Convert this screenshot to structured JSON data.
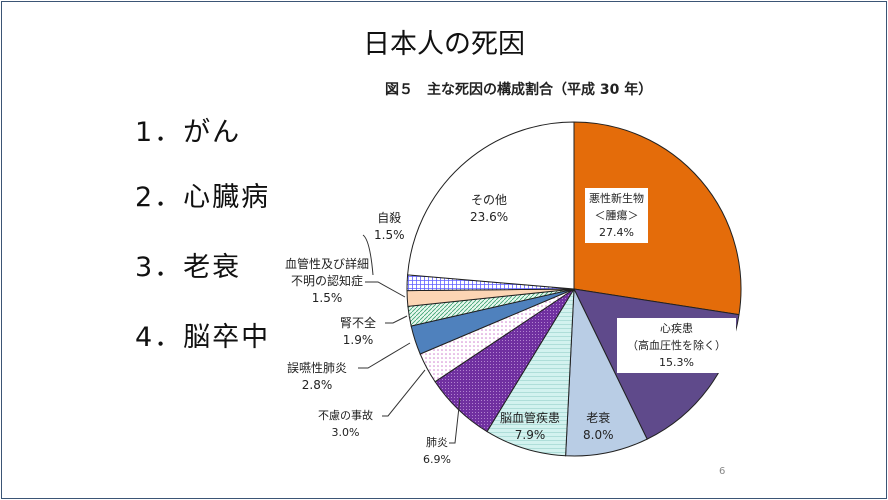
{
  "slide": {
    "title": "日本人の死因",
    "list": [
      "1．がん",
      "2．心臓病",
      "3．老衰",
      "4．脳卒中"
    ],
    "page_number": "6"
  },
  "chart_data": {
    "type": "pie",
    "title": "図５　主な死因の構成割合（平成 30 年）",
    "slices": [
      {
        "label": "悪性新生物",
        "sublabel": "＜腫瘍＞",
        "value": 27.4,
        "value_label": "27.4%",
        "color": "#e46c0a"
      },
      {
        "label": "心疾患",
        "sublabel": "（高血圧性を除く）",
        "value": 15.3,
        "value_label": "15.3%",
        "color": "#5f4a8b"
      },
      {
        "label": "老衰",
        "value": 8.0,
        "value_label": "8.0%",
        "color": "#b9cde5"
      },
      {
        "label": "脳血管疾患",
        "value": 7.9,
        "value_label": "7.9%",
        "color": "#d3f2ef"
      },
      {
        "label": "肺炎",
        "value": 6.9,
        "value_label": "6.9%",
        "color": "#7030a0"
      },
      {
        "label": "不慮の事故",
        "value": 3.0,
        "value_label": "3.0%",
        "color": "#f6d6f6"
      },
      {
        "label": "誤嚥性肺炎",
        "value": 2.8,
        "value_label": "2.8%",
        "color": "#4f81bd"
      },
      {
        "label": "腎不全",
        "value": 1.9,
        "value_label": "1.9%",
        "color": "#c6efd8"
      },
      {
        "label": "血管性及び詳細不明の認知症",
        "label_line1": "血管性及び詳細",
        "label_line2": "不明の認知症",
        "value": 1.5,
        "value_label": "1.5%",
        "color": "#fcd5b4"
      },
      {
        "label": "自殺",
        "value": 1.5,
        "value_label": "1.5%",
        "color": "#ccccff"
      },
      {
        "label": "その他",
        "value": 23.6,
        "value_label": "23.6%",
        "color": "#ffffff"
      }
    ]
  }
}
